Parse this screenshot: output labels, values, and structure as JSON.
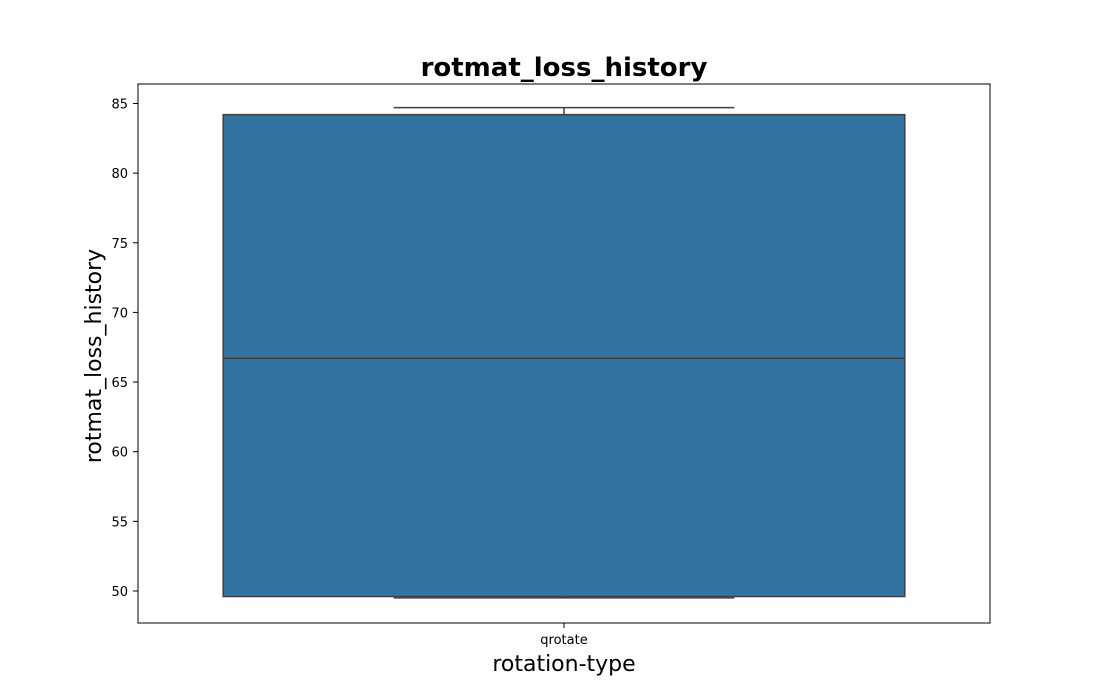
{
  "chart_data": {
    "type": "box",
    "title": "rotmat_loss_history",
    "xlabel": "rotation-type",
    "ylabel": "rotmat_loss_history",
    "categories": [
      "qrotate"
    ],
    "boxes": [
      {
        "category": "qrotate",
        "whisker_low": 49.5,
        "q1": 49.6,
        "median": 66.7,
        "q3": 84.2,
        "whisker_high": 84.7
      }
    ],
    "ylim": [
      47.7,
      86.4
    ],
    "yticks": [
      50,
      55,
      60,
      65,
      70,
      75,
      80,
      85
    ],
    "grid": false,
    "legend": "none",
    "colors": {
      "box_fill": "#3274a1",
      "box_edge": "#3f3f3f",
      "axis": "#000000"
    }
  }
}
